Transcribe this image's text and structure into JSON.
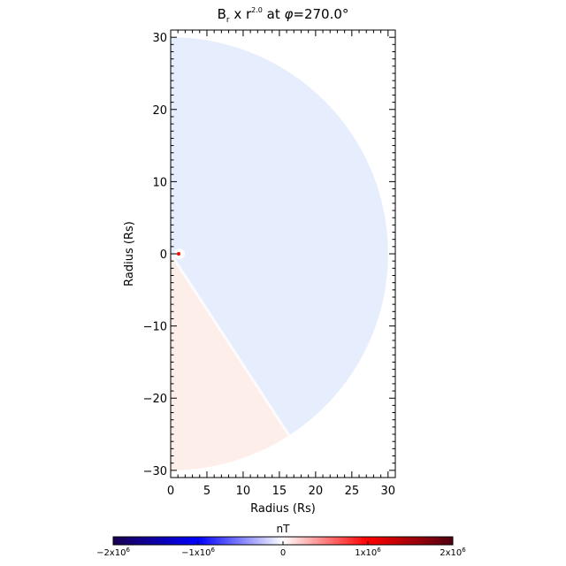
{
  "chart_data": {
    "type": "heatmap",
    "title": {
      "base": "B",
      "base_sub": "r",
      "mid": " x r",
      "exp": "2.0",
      "tail": " at ",
      "phi_symbol": "φ",
      "phi_value": "=270.0°"
    },
    "xlabel": "Radius (Rs)",
    "ylabel": "Radius (Rs)",
    "xlim": [
      0,
      31
    ],
    "ylim": [
      -31,
      31
    ],
    "x_ticks": [
      0,
      5,
      10,
      15,
      20,
      25,
      30
    ],
    "y_ticks": [
      30,
      20,
      10,
      0,
      -10,
      -20,
      -30
    ],
    "x_tick_labels": [
      "0",
      "5",
      "10",
      "15",
      "20",
      "25",
      "30"
    ],
    "y_tick_labels": [
      "30",
      "20",
      "10",
      "0",
      "−10",
      "−20",
      "−30"
    ],
    "domain_outer_radius": 30,
    "regions": [
      {
        "angle_from_deg": -57,
        "angle_to_deg": 90,
        "value_nT": -0.08,
        "color": "#e6edfd"
      },
      {
        "angle_from_deg": -90,
        "angle_to_deg": -57,
        "value_nT": 0.05,
        "color": "#fdeee9"
      }
    ],
    "colorbar": {
      "unit_label": "nT",
      "range": [
        -2000000,
        2000000
      ],
      "ticks": [
        -2000000,
        -1000000,
        0,
        1000000,
        2000000
      ],
      "tick_labels": [
        {
          "mant": "−2x10",
          "exp": "6"
        },
        {
          "mant": "−1x10",
          "exp": "6"
        },
        {
          "mant": "0",
          "exp": ""
        },
        {
          "mant": "1x10",
          "exp": "6"
        },
        {
          "mant": "2x10",
          "exp": "6"
        }
      ],
      "colors": [
        "#1a0050",
        "#0000ff",
        "#ffffff",
        "#ff0000",
        "#500010"
      ]
    }
  }
}
